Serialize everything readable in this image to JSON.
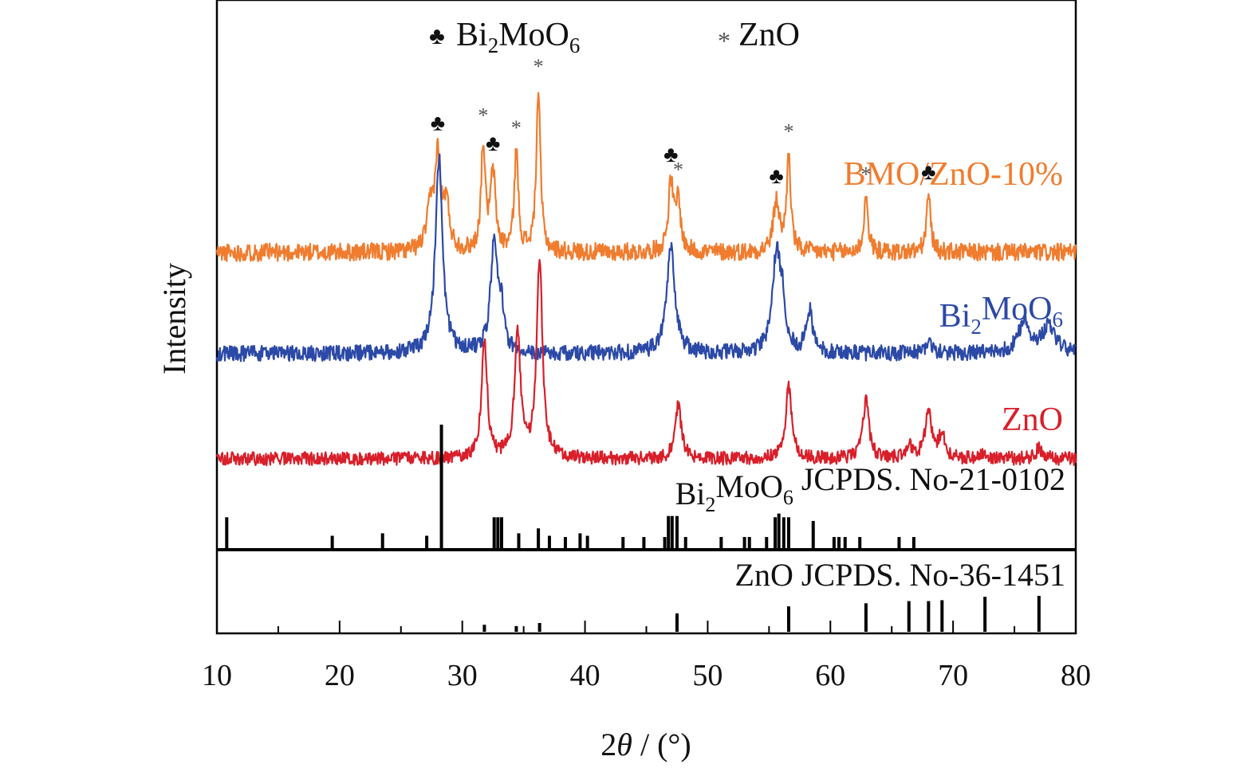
{
  "chart_data": {
    "type": "line",
    "title": "",
    "xlabel_main": "2",
    "xlabel_theta": "θ",
    "xlabel_unit": " / (°)",
    "ylabel": "Intensity",
    "xlim": [
      10,
      80
    ],
    "xticks": [
      "10",
      "20",
      "30",
      "40",
      "50",
      "60",
      "70",
      "80"
    ],
    "grid": false,
    "legend": {
      "placement": "top-center",
      "items": [
        {
          "symbol": "♣",
          "name": "Bi",
          "sub": "2",
          "name2": "MoO",
          "sub2": "6"
        },
        {
          "symbol": "*",
          "name": "ZnO",
          "sub": "",
          "name2": "",
          "sub2": ""
        }
      ]
    },
    "series": [
      {
        "label": "BMO/ZnO-10%",
        "label_parts": {
          "a": "BMO/ZnO-10%",
          "sub": "",
          "b": "",
          "sub2": ""
        },
        "color": "#f07c2e",
        "baseline": 0.2,
        "noise": 0.08,
        "peaks": [
          {
            "x": 27.4,
            "h": 0.35,
            "w": 0.35
          },
          {
            "x": 28.0,
            "h": 0.8,
            "w": 0.28
          },
          {
            "x": 28.7,
            "h": 0.4,
            "w": 0.3
          },
          {
            "x": 31.7,
            "h": 0.95,
            "w": 0.2
          },
          {
            "x": 32.5,
            "h": 0.7,
            "w": 0.25
          },
          {
            "x": 34.4,
            "h": 0.88,
            "w": 0.2
          },
          {
            "x": 36.2,
            "h": 1.45,
            "w": 0.2
          },
          {
            "x": 47.0,
            "h": 0.62,
            "w": 0.25
          },
          {
            "x": 47.6,
            "h": 0.45,
            "w": 0.22
          },
          {
            "x": 55.6,
            "h": 0.45,
            "w": 0.3
          },
          {
            "x": 56.6,
            "h": 0.85,
            "w": 0.2
          },
          {
            "x": 62.9,
            "h": 0.5,
            "w": 0.2
          },
          {
            "x": 68.0,
            "h": 0.52,
            "w": 0.2
          }
        ]
      },
      {
        "label": "Bi2MoO6",
        "label_parts": {
          "a": "Bi",
          "sub": "2",
          "b": "MoO",
          "sub2": "6"
        },
        "color": "#2b49a6",
        "baseline": 0.15,
        "noise": 0.07,
        "peaks": [
          {
            "x": 28.1,
            "h": 1.75,
            "w": 0.35
          },
          {
            "x": 32.6,
            "h": 1.0,
            "w": 0.35
          },
          {
            "x": 33.2,
            "h": 0.3,
            "w": 0.25
          },
          {
            "x": 47.0,
            "h": 0.95,
            "w": 0.4
          },
          {
            "x": 55.6,
            "h": 0.85,
            "w": 0.4
          },
          {
            "x": 56.1,
            "h": 0.35,
            "w": 0.3
          },
          {
            "x": 58.3,
            "h": 0.38,
            "w": 0.3
          },
          {
            "x": 68.0,
            "h": 0.12,
            "w": 0.3
          },
          {
            "x": 75.8,
            "h": 0.28,
            "w": 0.6
          },
          {
            "x": 77.8,
            "h": 0.25,
            "w": 0.6
          }
        ]
      },
      {
        "label": "ZnO",
        "label_parts": {
          "a": "ZnO",
          "sub": "",
          "b": "",
          "sub2": ""
        },
        "color": "#d81f2a",
        "baseline": 0.1,
        "noise": 0.06,
        "peaks": [
          {
            "x": 31.8,
            "h": 1.05,
            "w": 0.28
          },
          {
            "x": 34.5,
            "h": 1.15,
            "w": 0.28
          },
          {
            "x": 36.3,
            "h": 1.8,
            "w": 0.28
          },
          {
            "x": 47.6,
            "h": 0.48,
            "w": 0.3
          },
          {
            "x": 56.6,
            "h": 0.65,
            "w": 0.3
          },
          {
            "x": 62.9,
            "h": 0.52,
            "w": 0.3
          },
          {
            "x": 66.4,
            "h": 0.13,
            "w": 0.3
          },
          {
            "x": 68.0,
            "h": 0.45,
            "w": 0.3
          },
          {
            "x": 69.1,
            "h": 0.22,
            "w": 0.3
          },
          {
            "x": 72.6,
            "h": 0.06,
            "w": 0.3
          },
          {
            "x": 77.0,
            "h": 0.1,
            "w": 0.3
          }
        ]
      }
    ],
    "markers": [
      {
        "symbol": "♣",
        "x": 28.0,
        "series": 0
      },
      {
        "symbol": "*",
        "x": 31.7,
        "series": 0
      },
      {
        "symbol": "♣",
        "x": 32.5,
        "series": 0
      },
      {
        "symbol": "*",
        "x": 34.4,
        "series": 0
      },
      {
        "symbol": "*",
        "x": 36.2,
        "series": 0
      },
      {
        "symbol": "♣",
        "x": 47.0,
        "series": 0
      },
      {
        "symbol": "*",
        "x": 47.6,
        "series": 0
      },
      {
        "symbol": "♣",
        "x": 55.6,
        "series": 0
      },
      {
        "symbol": "*",
        "x": 56.6,
        "series": 0
      },
      {
        "symbol": "*",
        "x": 62.9,
        "series": 0
      },
      {
        "symbol": "♣",
        "x": 68.0,
        "series": 0
      }
    ],
    "references": [
      {
        "label_parts": {
          "a": "Bi",
          "sub": "2",
          "b": "MoO",
          "sub2": "6",
          "c": " JCPDS. No-21-0102"
        },
        "lines": [
          {
            "x": 10.8,
            "h": 0.25
          },
          {
            "x": 19.4,
            "h": 0.1
          },
          {
            "x": 23.5,
            "h": 0.12
          },
          {
            "x": 27.1,
            "h": 0.1
          },
          {
            "x": 28.3,
            "h": 1.0
          },
          {
            "x": 32.6,
            "h": 0.25
          },
          {
            "x": 32.9,
            "h": 0.25
          },
          {
            "x": 33.2,
            "h": 0.25
          },
          {
            "x": 34.6,
            "h": 0.12
          },
          {
            "x": 36.2,
            "h": 0.16
          },
          {
            "x": 37.1,
            "h": 0.1
          },
          {
            "x": 38.4,
            "h": 0.09
          },
          {
            "x": 39.6,
            "h": 0.12
          },
          {
            "x": 40.2,
            "h": 0.1
          },
          {
            "x": 43.1,
            "h": 0.09
          },
          {
            "x": 44.8,
            "h": 0.09
          },
          {
            "x": 46.5,
            "h": 0.09
          },
          {
            "x": 46.8,
            "h": 0.26
          },
          {
            "x": 47.1,
            "h": 0.26
          },
          {
            "x": 47.5,
            "h": 0.26
          },
          {
            "x": 48.2,
            "h": 0.09
          },
          {
            "x": 51.1,
            "h": 0.09
          },
          {
            "x": 53.0,
            "h": 0.09
          },
          {
            "x": 53.4,
            "h": 0.09
          },
          {
            "x": 54.8,
            "h": 0.09
          },
          {
            "x": 55.5,
            "h": 0.25
          },
          {
            "x": 55.8,
            "h": 0.28
          },
          {
            "x": 56.2,
            "h": 0.25
          },
          {
            "x": 56.6,
            "h": 0.25
          },
          {
            "x": 58.6,
            "h": 0.22
          },
          {
            "x": 60.3,
            "h": 0.09
          },
          {
            "x": 60.7,
            "h": 0.09
          },
          {
            "x": 61.2,
            "h": 0.09
          },
          {
            "x": 62.4,
            "h": 0.09
          },
          {
            "x": 65.6,
            "h": 0.09
          },
          {
            "x": 66.8,
            "h": 0.09
          }
        ]
      },
      {
        "label_parts": {
          "a": "ZnO JCPDS. No-36-1451",
          "sub": "",
          "b": "",
          "sub2": "",
          "c": ""
        },
        "lines": [
          {
            "x": 31.8,
            "h": 0.16
          },
          {
            "x": 34.4,
            "h": 0.13
          },
          {
            "x": 36.3,
            "h": 0.2
          },
          {
            "x": 47.5,
            "h": 0.42
          },
          {
            "x": 56.6,
            "h": 0.58
          },
          {
            "x": 62.9,
            "h": 0.65
          },
          {
            "x": 66.4,
            "h": 0.7
          },
          {
            "x": 68.0,
            "h": 0.7
          },
          {
            "x": 69.1,
            "h": 0.72
          },
          {
            "x": 72.6,
            "h": 0.8
          },
          {
            "x": 77.0,
            "h": 0.82
          }
        ]
      }
    ]
  }
}
